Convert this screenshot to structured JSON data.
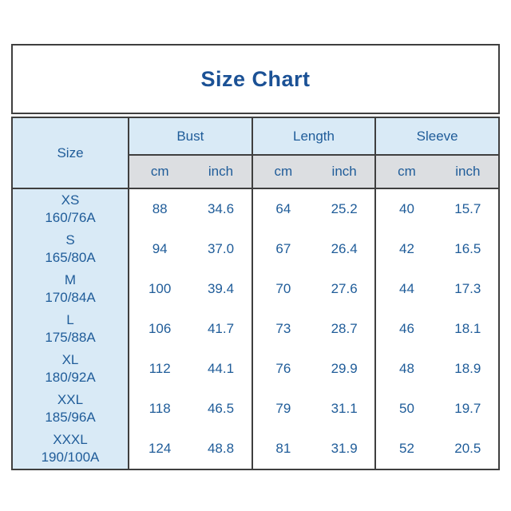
{
  "title": "Size Chart",
  "table": {
    "size_column_header": "Size",
    "groups": [
      {
        "label": "Bust"
      },
      {
        "label": "Length"
      },
      {
        "label": "Sleeve"
      }
    ],
    "unit_labels": {
      "bust_cm": "cm",
      "bust_inch": "inch",
      "length_cm": "cm",
      "length_inch": "inch",
      "sleeve_cm": "cm",
      "sleeve_inch": "inch"
    },
    "rows": [
      {
        "size": "XS",
        "spec": "160/76A",
        "bust_cm": "88",
        "bust_inch": "34.6",
        "length_cm": "64",
        "length_inch": "25.2",
        "sleeve_cm": "40",
        "sleeve_inch": "15.7"
      },
      {
        "size": "S",
        "spec": "165/80A",
        "bust_cm": "94",
        "bust_inch": "37.0",
        "length_cm": "67",
        "length_inch": "26.4",
        "sleeve_cm": "42",
        "sleeve_inch": "16.5"
      },
      {
        "size": "M",
        "spec": "170/84A",
        "bust_cm": "100",
        "bust_inch": "39.4",
        "length_cm": "70",
        "length_inch": "27.6",
        "sleeve_cm": "44",
        "sleeve_inch": "17.3"
      },
      {
        "size": "L",
        "spec": "175/88A",
        "bust_cm": "106",
        "bust_inch": "41.7",
        "length_cm": "73",
        "length_inch": "28.7",
        "sleeve_cm": "46",
        "sleeve_inch": "18.1"
      },
      {
        "size": "XL",
        "spec": "180/92A",
        "bust_cm": "112",
        "bust_inch": "44.1",
        "length_cm": "76",
        "length_inch": "29.9",
        "sleeve_cm": "48",
        "sleeve_inch": "18.9"
      },
      {
        "size": "XXL",
        "spec": "185/96A",
        "bust_cm": "118",
        "bust_inch": "46.5",
        "length_cm": "79",
        "length_inch": "31.1",
        "sleeve_cm": "50",
        "sleeve_inch": "19.7"
      },
      {
        "size": "XXXL",
        "spec": "190/100A",
        "bust_cm": "124",
        "bust_inch": "48.8",
        "length_cm": "81",
        "length_inch": "31.9",
        "sleeve_cm": "52",
        "sleeve_inch": "20.5"
      }
    ]
  },
  "colors": {
    "title_text": "#1b5195",
    "table_text": "#1f5c99",
    "header_blue_bg": "#d9eaf6",
    "units_gray_bg": "#dcdee1",
    "border": "#3f3f3f",
    "background": "#ffffff"
  },
  "chart_data": {
    "type": "table",
    "title": "Size Chart",
    "columns": [
      "Size",
      "Bust cm",
      "Bust inch",
      "Length cm",
      "Length inch",
      "Sleeve cm",
      "Sleeve inch"
    ],
    "rows": [
      [
        "XS 160/76A",
        88,
        34.6,
        64,
        25.2,
        40,
        15.7
      ],
      [
        "S 165/80A",
        94,
        37.0,
        67,
        26.4,
        42,
        16.5
      ],
      [
        "M 170/84A",
        100,
        39.4,
        70,
        27.6,
        44,
        17.3
      ],
      [
        "L 175/88A",
        106,
        41.7,
        73,
        28.7,
        46,
        18.1
      ],
      [
        "XL 180/92A",
        112,
        44.1,
        76,
        29.9,
        48,
        18.9
      ],
      [
        "XXL 185/96A",
        118,
        46.5,
        79,
        31.1,
        50,
        19.7
      ],
      [
        "XXXL 190/100A",
        124,
        48.8,
        81,
        31.9,
        52,
        20.5
      ]
    ]
  }
}
